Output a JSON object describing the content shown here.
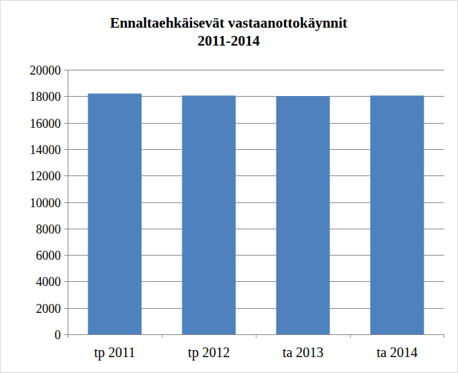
{
  "chart_data": {
    "type": "bar",
    "title": "Ennaltaehkäisevät vastaanottokäynnit 2011-2014",
    "categories": [
      "tp 2011",
      "tp 2012",
      "ta 2013",
      "ta 2014"
    ],
    "values": [
      18200,
      18050,
      18000,
      18050
    ],
    "color": "#4f81bd",
    "ylim": [
      0,
      20000
    ],
    "yticks": [
      0,
      2000,
      4000,
      6000,
      8000,
      10000,
      12000,
      14000,
      16000,
      18000,
      20000
    ],
    "grid": true
  }
}
